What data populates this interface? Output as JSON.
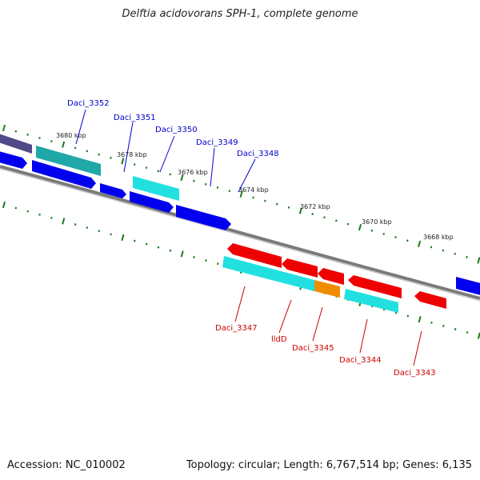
{
  "title": "Delftia acidovorans SPH-1, complete genome",
  "accession": "Accession: NC_010002",
  "summary": "Topology: circular; Length: 6,767,514 bp; Genes: 6,135",
  "colors": {
    "backbone": "#777777",
    "tick": "#1a7a1a",
    "forward_label": "#0000cc",
    "reverse_label": "#cc0000",
    "blue_cds": "#0000ee",
    "cyan_cds": "#22e0e0",
    "red_cds": "#ee0000",
    "orange_cds": "#f08c00",
    "teal_cds": "#20a8a8",
    "purple_cds": "#504a88"
  },
  "scale_labels": [
    "3680 kbp",
    "3678 kbp",
    "3676 kbp",
    "3674 kbp",
    "3672 kbp",
    "3670 kbp",
    "3668 kbp"
  ],
  "forward_genes": [
    "Daci_3352",
    "Daci_3351",
    "Daci_3350",
    "Daci_3349",
    "Daci_3348"
  ],
  "reverse_genes": [
    "Daci_3347",
    "lldD",
    "Daci_3345",
    "Daci_3344",
    "Daci_3343"
  ]
}
